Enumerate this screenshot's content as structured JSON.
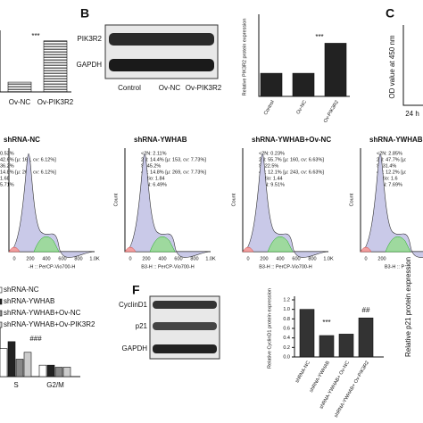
{
  "panels": {
    "b": "B",
    "c": "C",
    "f": "F"
  },
  "blot_b": {
    "bands": [
      "PIK3R2",
      "GAPDH"
    ],
    "lanes": [
      "Control",
      "Ov-NC",
      "Ov-PIK3R2"
    ]
  },
  "panel_c": {
    "ylabel": "OD value at 450 nm",
    "xlabel": "24 h"
  },
  "flow": [
    {
      "title": "shRNA-NC",
      "stats": [
        "0.53%",
        "42.6% [μ: 160, cv: 6.12%]",
        "36.2%",
        "14.8% [μ: 269, cv: 6.12%]",
        "1.68",
        "5.71%"
      ],
      "xticks": [
        "0",
        "200",
        "400",
        "600",
        "800",
        "1.0K"
      ],
      "xlabel": "-H :: PerCP-Vio700-H"
    },
    {
      "title": "shRNA-YWHAB",
      "ylabel": "Count",
      "stats": [
        "<2N: 2.11%",
        "2N: 14.4% [μ: 153, cv: 7.73%]",
        "S: 45.2%",
        "4N: 14.8% [μ: 269, cv: 7.73%]",
        "Ratio: 1.84",
        ">4N: 6.49%"
      ],
      "xticks": [
        "0",
        "200",
        "400",
        "600",
        "800",
        "1.0K"
      ],
      "xlabel": "B3-H :: PerCP-Vio700-H"
    },
    {
      "title": "shRNA-YWHAB+Ov-NC",
      "ylabel": "Count",
      "stats": [
        "<2N: 0.23%",
        "2N: 55.7% [μ: 160, cv: 6.63%]",
        "S: 22.5%",
        "4N: 12.1% [μ: 243, cv: 6.63%]",
        "Ratio: 1.44",
        ">4N: 9.51%"
      ],
      "xticks": [
        "0",
        "200",
        "400",
        "600",
        "800",
        "1.0K"
      ],
      "xlabel": "B3-H :: PerCP-Vio700-H"
    },
    {
      "title": "shRNA-YWHAB",
      "ylabel": "Count",
      "stats": [
        "<2N: 2.85%",
        "2N: 47.7% [μ:",
        "S: 31.4%",
        "4N: 12.2% [μ:",
        "Ratio: 1.6",
        ">4N: 7.69%"
      ],
      "xticks": [
        "0",
        "200"
      ],
      "xlabel": "B3-H :: P"
    }
  ],
  "blot_f": {
    "bands": [
      "CyclinD1",
      "p21",
      "GAPDH"
    ]
  },
  "p21_ylabel": "Relative p21 protein expression",
  "chart_data": [
    {
      "type": "bar",
      "categories": [
        "Ov-NC",
        "Ov-PIK3R2"
      ],
      "values": [
        0.42,
        2.2
      ],
      "ylim": [
        0,
        2.5
      ],
      "annotations": [
        "***"
      ],
      "color": "#444"
    },
    {
      "type": "bar",
      "ylabel": "Relative PIK3R2 protein expression",
      "categories": [
        "Control",
        "Ov-NC",
        "Ov-PIK3R2"
      ],
      "values": [
        1.0,
        1.0,
        2.3
      ],
      "ylim": [
        0,
        3.4
      ],
      "annotations": [
        "***"
      ],
      "color": "#222"
    },
    {
      "type": "bar",
      "ylabel": "Relative CyclinD1 protein expression",
      "categories": [
        "shRNA-NC",
        "shRNA-YWHAB",
        "shRNA-YWHAB+ Ov-NC",
        "shRNA-YWHAB+ Ov-PIK3R2"
      ],
      "values": [
        1.0,
        0.45,
        0.48,
        0.82
      ],
      "ylim": [
        0,
        1.2
      ],
      "yticks": [
        {
          "value": 0,
          "label": "0.0"
        },
        {
          "value": 0.2,
          "label": "0.2"
        },
        {
          "value": 0.4,
          "label": "0.4"
        },
        {
          "value": 0.6,
          "label": "0.6"
        },
        {
          "value": 0.8,
          "label": "0.8"
        },
        {
          "value": 1,
          "label": "1.0"
        },
        {
          "value": 1.2,
          "label": "1.2"
        }
      ],
      "annotations": [
        "***",
        "##"
      ],
      "color": "#333"
    },
    {
      "type": "grouped-bar",
      "categories": [
        "S",
        "G2/M"
      ],
      "ylim": [
        0,
        60
      ],
      "annotations": [
        "###"
      ],
      "series": [
        {
          "name": "shRNA-NC",
          "color": "#ffffff",
          "values": [
            36.2,
            14.8
          ]
        },
        {
          "name": "shRNA-YWHAB",
          "color": "#222222",
          "values": [
            45.2,
            14.8
          ]
        },
        {
          "name": "shRNA-YWHAB+Ov-NC",
          "color": "#888888",
          "values": [
            22.5,
            12.1
          ]
        },
        {
          "name": "shRNA-YWHAB+Ov-PIK3R2",
          "color": "#cccccc",
          "values": [
            31.4,
            12.2
          ]
        }
      ]
    }
  ]
}
